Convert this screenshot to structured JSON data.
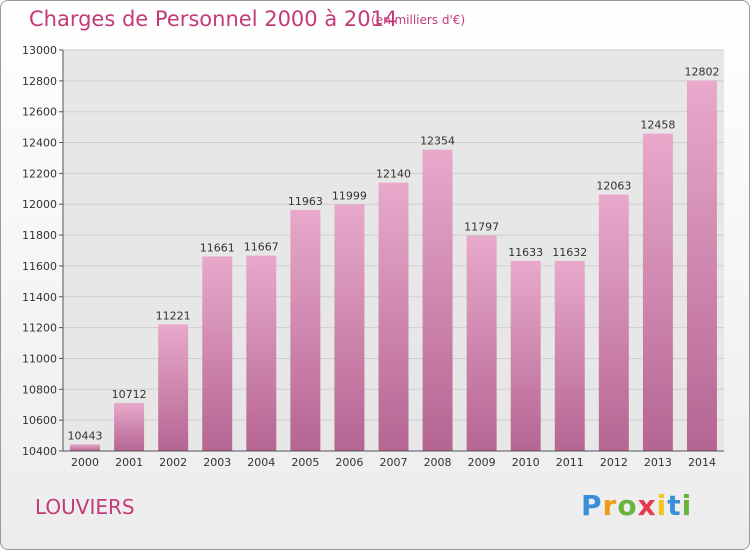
{
  "chart_data": {
    "type": "bar",
    "title": "Charges de Personnel 2000 à 2014",
    "subtitle": "(en milliers d'€)",
    "categories": [
      "2000",
      "2001",
      "2002",
      "2003",
      "2004",
      "2005",
      "2006",
      "2007",
      "2008",
      "2009",
      "2010",
      "2011",
      "2012",
      "2013",
      "2014"
    ],
    "values": [
      10443,
      10712,
      11221,
      11661,
      11667,
      11963,
      11999,
      12140,
      12354,
      11797,
      11633,
      11632,
      12063,
      12458,
      12802
    ],
    "ylim": [
      10400,
      13000
    ],
    "yticks": [
      10400,
      10600,
      10800,
      11000,
      11200,
      11400,
      11600,
      11800,
      12000,
      12200,
      12400,
      12600,
      12800,
      13000
    ],
    "grid": true,
    "bar_color": "#c9679c"
  },
  "footer": {
    "city": "LOUVIERS",
    "logo_letters": [
      "P",
      "r",
      "o",
      "x",
      "i",
      "t",
      "i"
    ],
    "logo_colors": [
      "#3b8fd8",
      "#f39a1e",
      "#6ab43e",
      "#e73a4e",
      "#f4c619",
      "#3b8fd8",
      "#6ab43e"
    ]
  }
}
